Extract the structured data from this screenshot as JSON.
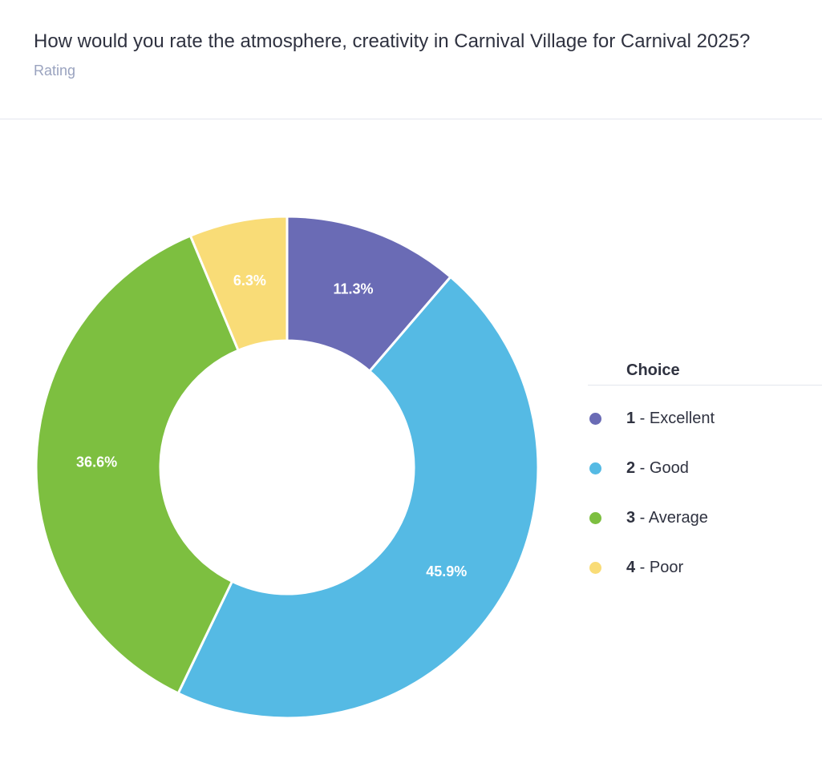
{
  "header": {
    "title": "How would you rate the atmosphere, creativity in Carnival Village for Carnival 2025?",
    "subtitle": "Rating"
  },
  "legend": {
    "heading": "Choice"
  },
  "chart_data": {
    "type": "pie",
    "style": "donut",
    "legend_position": "right",
    "slices": [
      {
        "number": "1",
        "label": "Excellent",
        "value": 11.3,
        "value_label": "11.3%",
        "color": "#6a6bb5"
      },
      {
        "number": "2",
        "label": "Good",
        "value": 45.9,
        "value_label": "45.9%",
        "color": "#55bae4"
      },
      {
        "number": "3",
        "label": "Average",
        "value": 36.6,
        "value_label": "36.6%",
        "color": "#7dbf40"
      },
      {
        "number": "4",
        "label": "Poor",
        "value": 6.3,
        "value_label": "6.3%",
        "color": "#f9dc77"
      }
    ]
  }
}
